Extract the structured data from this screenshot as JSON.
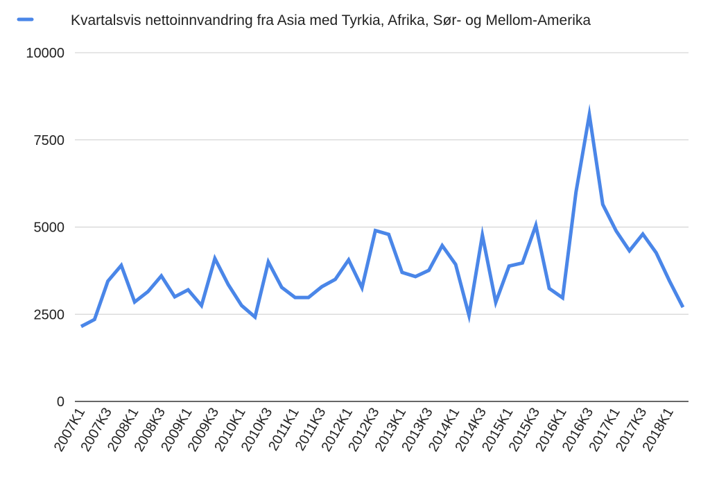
{
  "chart_data": {
    "type": "line",
    "title": "",
    "xlabel": "",
    "ylabel": "",
    "ylim": [
      0,
      10000
    ],
    "yticks": [
      "0",
      "2500",
      "5000",
      "7500",
      "10000"
    ],
    "grid": true,
    "legend_position": "top",
    "x_tick_labels": [
      "2007K1",
      "2007K3",
      "2008K1",
      "2008K3",
      "2009K1",
      "2009K3",
      "2010K1",
      "2010K3",
      "2011K1",
      "2011K3",
      "2012K1",
      "2012K3",
      "2013K1",
      "2013K3",
      "2014K1",
      "2014K3",
      "2015K1",
      "2015K3",
      "2016K1",
      "2016K3",
      "2017K1",
      "2017K3",
      "2018K1"
    ],
    "categories": [
      "2007K1",
      "2007K2",
      "2007K3",
      "2007K4",
      "2008K1",
      "2008K2",
      "2008K3",
      "2008K4",
      "2009K1",
      "2009K2",
      "2009K3",
      "2009K4",
      "2010K1",
      "2010K2",
      "2010K3",
      "2010K4",
      "2011K1",
      "2011K2",
      "2011K3",
      "2011K4",
      "2012K1",
      "2012K2",
      "2012K3",
      "2012K4",
      "2013K1",
      "2013K2",
      "2013K3",
      "2013K4",
      "2014K1",
      "2014K2",
      "2014K3",
      "2014K4",
      "2015K1",
      "2015K2",
      "2015K3",
      "2015K4",
      "2016K1",
      "2016K2",
      "2016K3",
      "2016K4",
      "2017K1",
      "2017K2",
      "2017K3",
      "2017K4",
      "2018K1",
      "2018K2"
    ],
    "series": [
      {
        "name": "Kvartalsvis nettoinnvandring fra Asia med Tyrkia, Afrika, Sør- og Mellom-Amerika",
        "color": "#4a86e8",
        "values": [
          2150,
          2350,
          3450,
          3900,
          2850,
          3150,
          3600,
          3000,
          3200,
          2750,
          4100,
          3350,
          2750,
          2420,
          4000,
          3270,
          2980,
          2980,
          3290,
          3500,
          4060,
          3260,
          4900,
          4790,
          3700,
          3580,
          3760,
          4470,
          3930,
          2470,
          4770,
          2840,
          3880,
          3970,
          5050,
          3240,
          2970,
          6000,
          8220,
          5650,
          4890,
          4320,
          4800,
          4260,
          3450,
          2700
        ]
      }
    ]
  }
}
